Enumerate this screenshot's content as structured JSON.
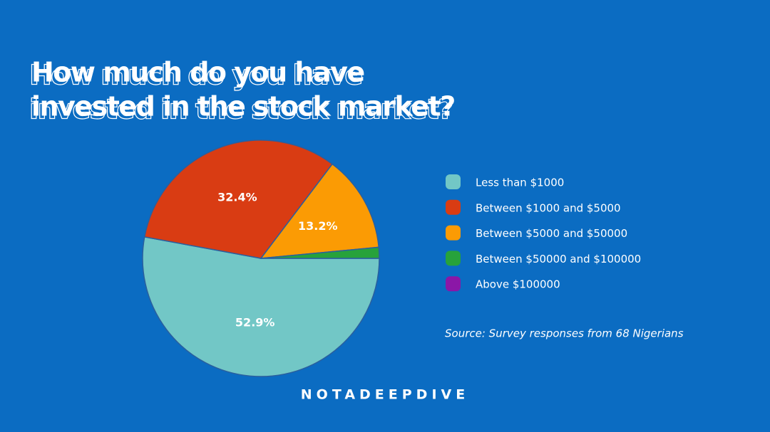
{
  "chart_data": {
    "type": "pie",
    "title_lines": [
      "How much do you have",
      "invested in the stock market?"
    ],
    "categories": [
      "Less than $1000",
      "Between $1000 and $5000",
      "Between $5000 and $50000",
      "Between $50000 and $100000",
      "Above $100000"
    ],
    "values": [
      52.9,
      32.4,
      13.2,
      1.5,
      0
    ],
    "value_labels": [
      "52.9%",
      "32.4%",
      "13.2%",
      null,
      null
    ],
    "colors": [
      "#72c7c6",
      "#d93c13",
      "#fb9b04",
      "#27a23b",
      "#8b17a7"
    ],
    "source": "Source: Survey responses from 68 Nigerians",
    "logo": "NOTADEEPDIVE"
  }
}
